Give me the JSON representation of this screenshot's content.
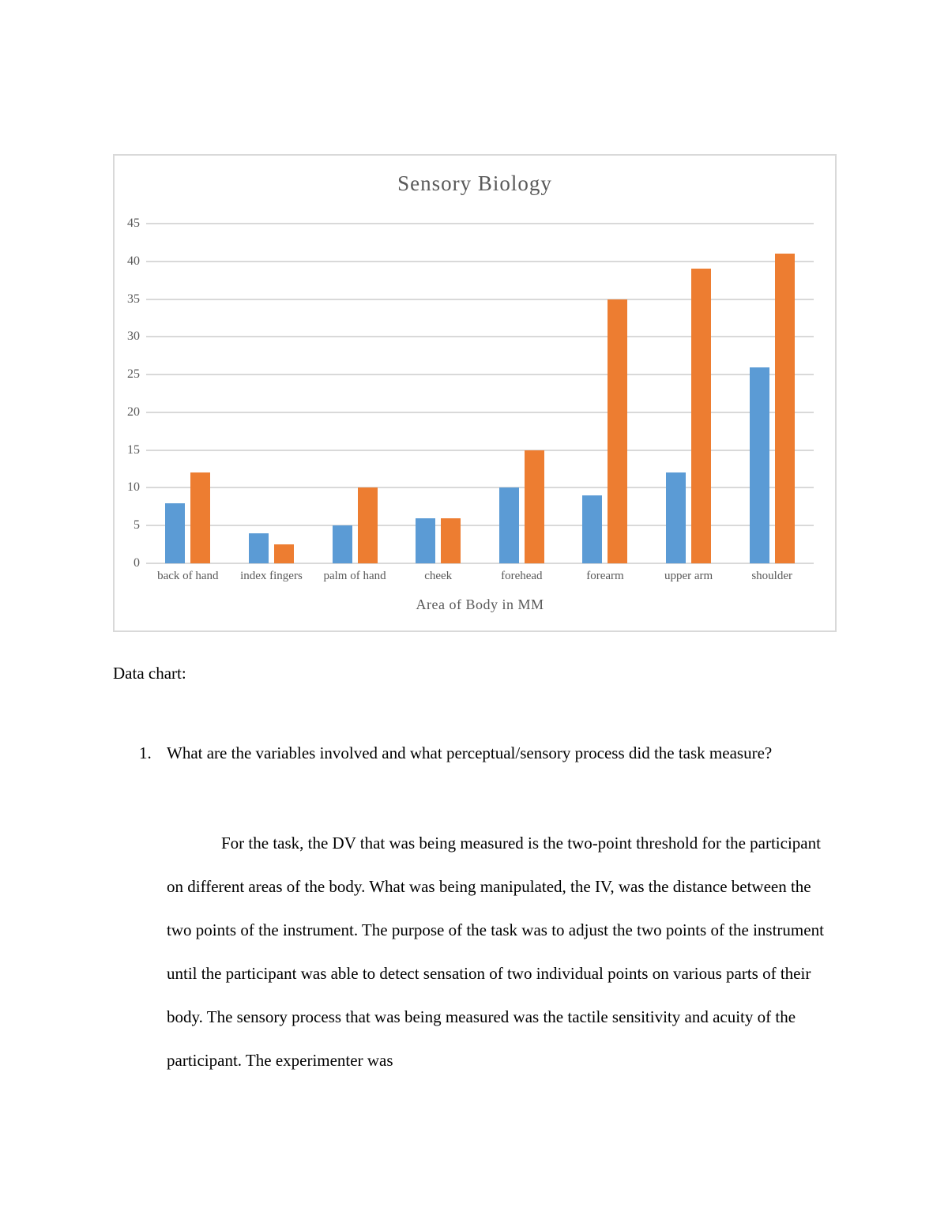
{
  "chart_data": {
    "type": "bar",
    "title": "Sensory Biology",
    "xlabel": "Area of Body in MM",
    "ylabel": "",
    "ylim": [
      0,
      45
    ],
    "yticks": [
      0,
      5,
      10,
      15,
      20,
      25,
      30,
      35,
      40,
      45
    ],
    "grid": true,
    "legend": "none",
    "categories": [
      "back of hand",
      "index fingers",
      "palm of hand",
      "cheek",
      "forehead",
      "forearm",
      "upper arm",
      "shoulder"
    ],
    "series": [
      {
        "color": "#5B9BD5",
        "values": [
          8,
          4,
          5,
          6,
          10,
          9,
          12,
          26
        ]
      },
      {
        "color": "#ED7D31",
        "values": [
          12,
          2.5,
          10,
          6,
          15,
          35,
          39,
          41
        ]
      }
    ],
    "colors": {
      "gridline": "#D9D9D9",
      "axis_text": "#595959",
      "title_text": "#595959",
      "border": "#D9D9D9"
    }
  },
  "document": {
    "data_chart_label": "Data chart:",
    "question": {
      "number": "1.",
      "text": "What are the variables involved and what perceptual/sensory process did the task measure?"
    },
    "answer": "For the task, the DV that was being measured is the two-point threshold for the participant on different areas of the body. What was being manipulated, the IV, was the distance between the two points of the instrument. The purpose of the task was to adjust the two points of the instrument until the participant was able to detect sensation of two individual points on various parts of their body. The sensory process that was being measured was the tactile sensitivity and acuity of the participant. The experimenter was"
  }
}
